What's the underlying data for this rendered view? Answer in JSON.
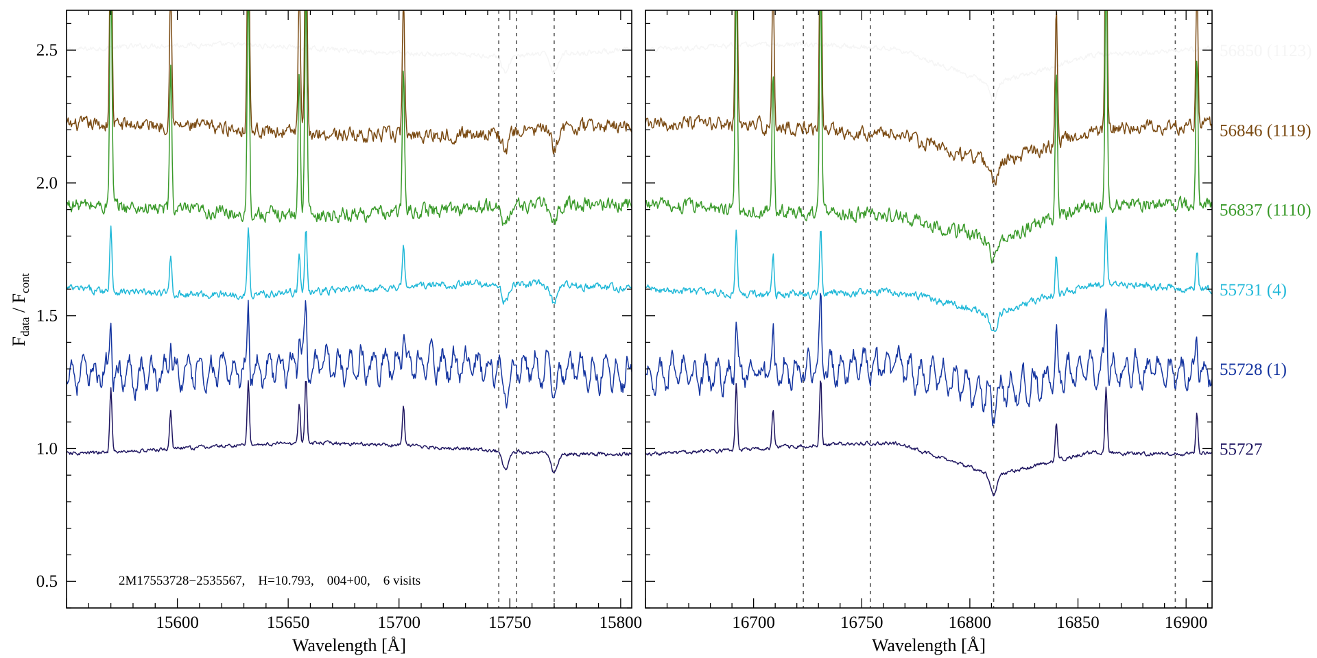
{
  "chart_data": {
    "type": "line",
    "ylabel": "F_data / F_cont",
    "ylabel_main": "F",
    "ylabel_sub1": "data",
    "ylabel_mid": " / F",
    "ylabel_sub2": "cont",
    "ylim": [
      0.4,
      2.65
    ],
    "yticks": [
      0.5,
      1.0,
      1.5,
      2.0,
      2.5
    ],
    "ytick_labels": [
      "0.5",
      "1.0",
      "1.5",
      "2.0",
      "2.5"
    ],
    "annotation": "2M17553728−2535567,    H=10.793,    004+00,    6 visits",
    "grid": false,
    "legend_placement": "right, beside each spectrum",
    "series": [
      {
        "name": "56850 (1123)",
        "color": "#f5f5f5",
        "offset": 2.5,
        "noise": 0.008
      },
      {
        "name": "56846 (1119)",
        "color": "#7a4a12",
        "offset": 2.2,
        "noise": 0.022
      },
      {
        "name": "56837 (1110)",
        "color": "#3a9a2a",
        "offset": 1.9,
        "noise": 0.022
      },
      {
        "name": "55731 (4)",
        "color": "#20b8d8",
        "offset": 1.6,
        "noise": 0.012
      },
      {
        "name": "55728 (1)",
        "color": "#1535a0",
        "offset": 1.3,
        "noise": 0.03
      },
      {
        "name": "55727",
        "color": "#1e1560",
        "offset": 1.0,
        "noise": 0.006
      }
    ],
    "panels": [
      {
        "xlabel": "Wavelength [Å]",
        "xlim": [
          15550,
          15805
        ],
        "xticks": [
          15600,
          15650,
          15700,
          15750,
          15800
        ],
        "xtick_labels": [
          "15600",
          "15650",
          "15700",
          "15750",
          "15800"
        ],
        "vlines": [
          15745,
          15753,
          15770
        ],
        "emission_lines": [
          15570,
          15597,
          15632,
          15655,
          15658,
          15702
        ],
        "absorption_lines": [
          15748,
          15770
        ]
      },
      {
        "xlabel": "Wavelength [Å]",
        "xlim": [
          16650,
          16912
        ],
        "xticks": [
          16700,
          16750,
          16800,
          16850,
          16900
        ],
        "xtick_labels": [
          "16700",
          "16750",
          "16800",
          "16850",
          "16900"
        ],
        "vlines": [
          16723,
          16754,
          16811,
          16895
        ],
        "emission_lines": [
          16692,
          16709,
          16731,
          16840,
          16863,
          16905
        ],
        "absorption_lines": [
          16811
        ]
      }
    ]
  }
}
